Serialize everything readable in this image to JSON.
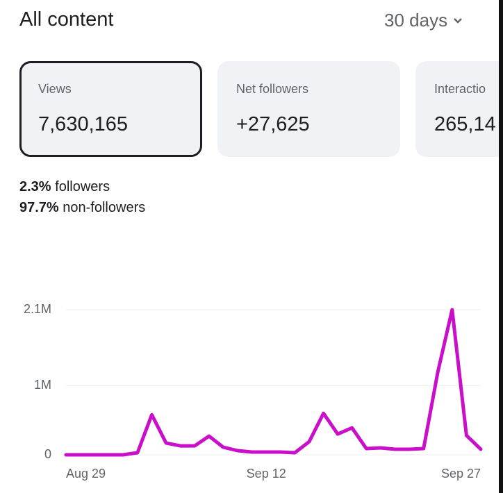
{
  "header": {
    "title": "All content",
    "range": "30 days"
  },
  "cards": [
    {
      "label": "Views",
      "value": "7,630,165"
    },
    {
      "label": "Net followers",
      "value": "+27,625"
    },
    {
      "label": "Interactio",
      "value": "265,14"
    }
  ],
  "audience": [
    {
      "percent": "2.3%",
      "label": "followers"
    },
    {
      "percent": "97.7%",
      "label": "non-followers"
    }
  ],
  "chart_data": {
    "type": "line",
    "color": "#c90fc9",
    "categories": [
      "Aug 29",
      null,
      null,
      null,
      null,
      null,
      null,
      null,
      null,
      null,
      null,
      null,
      null,
      null,
      "Sep 12",
      null,
      null,
      null,
      null,
      null,
      null,
      null,
      null,
      null,
      null,
      null,
      null,
      null,
      null,
      "Sep 27"
    ],
    "values": [
      0,
      0,
      0,
      0,
      0,
      30000,
      580000,
      170000,
      130000,
      130000,
      270000,
      110000,
      60000,
      40000,
      40000,
      40000,
      30000,
      190000,
      600000,
      300000,
      390000,
      90000,
      100000,
      80000,
      80000,
      90000,
      1200000,
      2100000,
      280000,
      80000
    ],
    "ylim": [
      0,
      2100000
    ],
    "yticks": [
      0,
      {
        "value": 1000000,
        "label": "1M"
      },
      {
        "value": 2100000,
        "label": "2.1M"
      }
    ],
    "grid": true
  }
}
